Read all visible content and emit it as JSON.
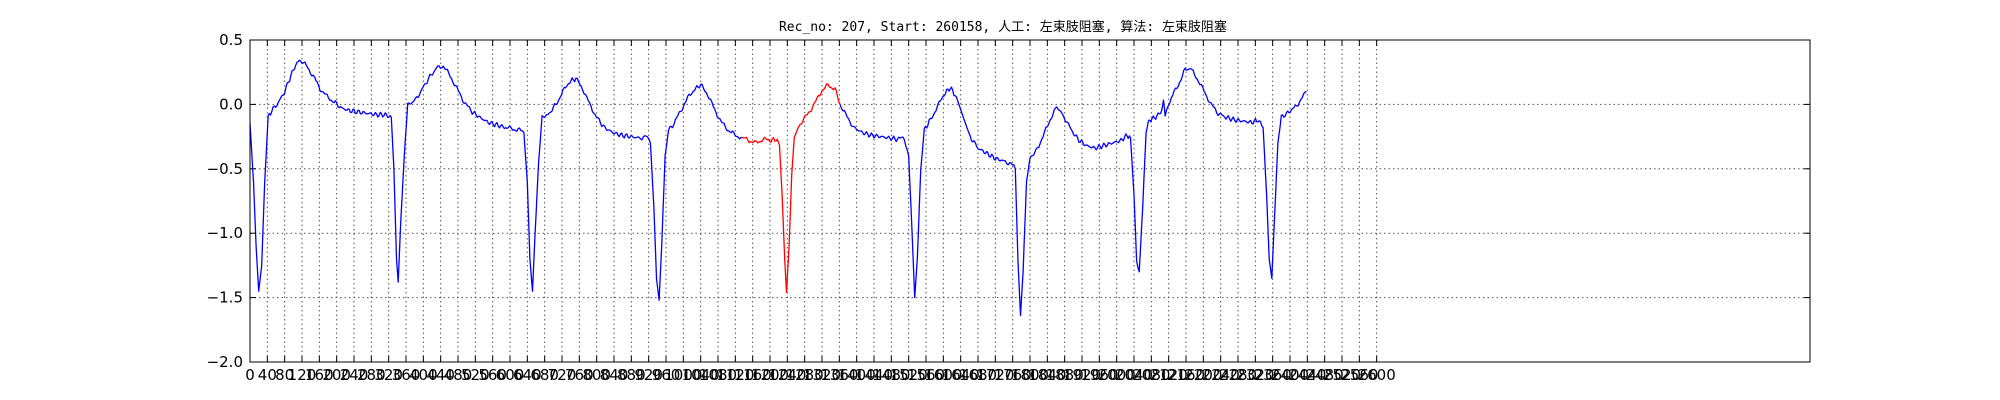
{
  "chart_data": {
    "type": "line",
    "title": "Rec_no: 207, Start: 260158, 人工: 左束肢阻塞, 算法: 左束肢阻塞",
    "xlabel": "",
    "ylabel": "",
    "xlim": [
      0,
      3600
    ],
    "ylim": [
      -2.0,
      0.5
    ],
    "yticks": [
      0.5,
      0.0,
      -0.5,
      -1.0,
      -1.5,
      -2.0
    ],
    "ytick_labels": [
      "0.5",
      "0.0",
      "−0.5",
      "−1.0",
      "−1.5",
      "−2.0"
    ],
    "xticks": [
      0,
      40,
      80,
      120,
      160,
      200,
      240,
      280,
      320,
      360,
      400,
      440,
      480,
      520,
      560,
      600,
      640,
      680,
      720,
      760,
      800,
      840,
      880,
      920,
      960,
      1000,
      1040,
      1080,
      1120,
      1160,
      1200,
      1240,
      1280,
      1320,
      1360,
      1400,
      1440,
      1480,
      1520,
      1560,
      1600,
      1640,
      1680,
      1720,
      1760,
      1800,
      1840,
      1880,
      1920,
      1960,
      2000,
      2040,
      2080,
      2120,
      2160,
      2200,
      2240,
      2280,
      2320,
      2360,
      2400,
      2440,
      2480,
      2520,
      2560,
      2600
    ],
    "grid": true,
    "series": [
      {
        "color": "#0000ff",
        "points": [
          [
            0,
            -0.15
          ],
          [
            8,
            -0.6
          ],
          [
            14,
            -1.1
          ],
          [
            20,
            -1.45
          ],
          [
            27,
            -1.25
          ],
          [
            34,
            -0.6
          ],
          [
            42,
            -0.1
          ],
          [
            50,
            -0.05
          ],
          [
            62,
            0.0
          ],
          [
            74,
            0.06
          ],
          [
            86,
            0.15
          ],
          [
            100,
            0.27
          ],
          [
            114,
            0.35
          ],
          [
            130,
            0.3
          ],
          [
            146,
            0.22
          ],
          [
            162,
            0.12
          ],
          [
            178,
            0.06
          ],
          [
            194,
            0.02
          ],
          [
            212,
            -0.03
          ],
          [
            232,
            -0.05
          ],
          [
            252,
            -0.06
          ],
          [
            272,
            -0.07
          ],
          [
            292,
            -0.08
          ],
          [
            312,
            -0.08
          ],
          [
            326,
            -0.1
          ],
          [
            332,
            -0.5
          ],
          [
            338,
            -1.2
          ],
          [
            342,
            -1.38
          ],
          [
            348,
            -0.9
          ],
          [
            356,
            -0.4
          ],
          [
            364,
            0.0
          ],
          [
            378,
            0.02
          ],
          [
            394,
            0.1
          ],
          [
            412,
            0.2
          ],
          [
            430,
            0.28
          ],
          [
            446,
            0.3
          ],
          [
            462,
            0.22
          ],
          [
            478,
            0.12
          ],
          [
            494,
            0.02
          ],
          [
            510,
            -0.05
          ],
          [
            530,
            -0.1
          ],
          [
            550,
            -0.14
          ],
          [
            570,
            -0.16
          ],
          [
            590,
            -0.18
          ],
          [
            606,
            -0.19
          ],
          [
            622,
            -0.2
          ],
          [
            632,
            -0.22
          ],
          [
            640,
            -0.6
          ],
          [
            646,
            -1.2
          ],
          [
            652,
            -1.45
          ],
          [
            658,
            -1.0
          ],
          [
            666,
            -0.45
          ],
          [
            674,
            -0.1
          ],
          [
            688,
            -0.08
          ],
          [
            706,
            0.0
          ],
          [
            722,
            0.1
          ],
          [
            738,
            0.18
          ],
          [
            752,
            0.2
          ],
          [
            768,
            0.12
          ],
          [
            784,
            0.0
          ],
          [
            800,
            -0.1
          ],
          [
            818,
            -0.18
          ],
          [
            838,
            -0.22
          ],
          [
            858,
            -0.24
          ],
          [
            878,
            -0.25
          ],
          [
            898,
            -0.26
          ],
          [
            914,
            -0.25
          ],
          [
            924,
            -0.3
          ],
          [
            932,
            -0.8
          ],
          [
            938,
            -1.35
          ],
          [
            944,
            -1.52
          ],
          [
            950,
            -1.1
          ],
          [
            958,
            -0.4
          ],
          [
            966,
            -0.2
          ],
          [
            978,
            -0.15
          ],
          [
            994,
            -0.05
          ],
          [
            1010,
            0.05
          ],
          [
            1026,
            0.12
          ],
          [
            1040,
            0.15
          ],
          [
            1056,
            0.08
          ],
          [
            1072,
            -0.04
          ],
          [
            1088,
            -0.14
          ],
          [
            1104,
            -0.2
          ],
          [
            1120,
            -0.24
          ],
          [
            1136,
            -0.26
          ]
        ]
      },
      {
        "color": "#ff0000",
        "points": [
          [
            1136,
            -0.26
          ],
          [
            1152,
            -0.28
          ],
          [
            1168,
            -0.3
          ],
          [
            1184,
            -0.27
          ],
          [
            1200,
            -0.28
          ],
          [
            1214,
            -0.27
          ],
          [
            1222,
            -0.32
          ],
          [
            1228,
            -0.7
          ],
          [
            1234,
            -1.2
          ],
          [
            1238,
            -1.46
          ],
          [
            1244,
            -1.1
          ],
          [
            1250,
            -0.55
          ],
          [
            1256,
            -0.25
          ],
          [
            1270,
            -0.15
          ],
          [
            1286,
            -0.08
          ],
          [
            1302,
            0.0
          ],
          [
            1318,
            0.1
          ],
          [
            1334,
            0.15
          ],
          [
            1350,
            0.12
          ],
          [
            1362,
            0.0
          ]
        ]
      },
      {
        "color": "#0000ff",
        "points": [
          [
            1362,
            0.0
          ],
          [
            1378,
            -0.1
          ],
          [
            1394,
            -0.18
          ],
          [
            1414,
            -0.22
          ],
          [
            1434,
            -0.24
          ],
          [
            1454,
            -0.25
          ],
          [
            1474,
            -0.26
          ],
          [
            1494,
            -0.27
          ],
          [
            1510,
            -0.26
          ],
          [
            1520,
            -0.4
          ],
          [
            1528,
            -1.0
          ],
          [
            1534,
            -1.5
          ],
          [
            1540,
            -1.2
          ],
          [
            1548,
            -0.5
          ],
          [
            1556,
            -0.2
          ],
          [
            1570,
            -0.12
          ],
          [
            1586,
            -0.02
          ],
          [
            1602,
            0.08
          ],
          [
            1616,
            0.13
          ],
          [
            1630,
            0.06
          ],
          [
            1646,
            -0.1
          ],
          [
            1662,
            -0.25
          ],
          [
            1680,
            -0.34
          ],
          [
            1700,
            -0.38
          ],
          [
            1720,
            -0.42
          ],
          [
            1740,
            -0.44
          ],
          [
            1756,
            -0.46
          ],
          [
            1766,
            -0.5
          ],
          [
            1772,
            -1.2
          ],
          [
            1778,
            -1.64
          ],
          [
            1784,
            -1.3
          ],
          [
            1792,
            -0.6
          ],
          [
            1800,
            -0.42
          ],
          [
            1814,
            -0.36
          ],
          [
            1830,
            -0.25
          ],
          [
            1846,
            -0.12
          ],
          [
            1862,
            -0.02
          ],
          [
            1876,
            -0.08
          ],
          [
            1892,
            -0.18
          ],
          [
            1910,
            -0.27
          ],
          [
            1930,
            -0.32
          ],
          [
            1950,
            -0.34
          ],
          [
            1970,
            -0.32
          ],
          [
            1990,
            -0.3
          ],
          [
            2010,
            -0.28
          ],
          [
            2024,
            -0.24
          ],
          [
            2032,
            -0.26
          ],
          [
            2040,
            -0.7
          ],
          [
            2046,
            -1.2
          ],
          [
            2052,
            -1.3
          ],
          [
            2060,
            -0.8
          ],
          [
            2068,
            -0.2
          ],
          [
            2076,
            -0.12
          ],
          [
            2090,
            -0.1
          ],
          [
            2104,
            -0.05
          ],
          [
            2108,
            0.05
          ],
          [
            2112,
            -0.08
          ],
          [
            2126,
            0.05
          ],
          [
            2142,
            0.15
          ],
          [
            2158,
            0.27
          ],
          [
            2170,
            0.28
          ],
          [
            2186,
            0.2
          ],
          [
            2202,
            0.1
          ],
          [
            2218,
            0.0
          ],
          [
            2234,
            -0.07
          ],
          [
            2252,
            -0.1
          ],
          [
            2272,
            -0.12
          ],
          [
            2292,
            -0.13
          ],
          [
            2312,
            -0.14
          ],
          [
            2326,
            -0.12
          ],
          [
            2338,
            -0.18
          ],
          [
            2346,
            -0.7
          ],
          [
            2352,
            -1.2
          ],
          [
            2358,
            -1.35
          ],
          [
            2364,
            -0.9
          ],
          [
            2372,
            -0.3
          ],
          [
            2380,
            -0.1
          ],
          [
            2392,
            -0.07
          ],
          [
            2406,
            -0.04
          ],
          [
            2422,
            0.02
          ],
          [
            2438,
            0.1
          ]
        ]
      }
    ]
  }
}
